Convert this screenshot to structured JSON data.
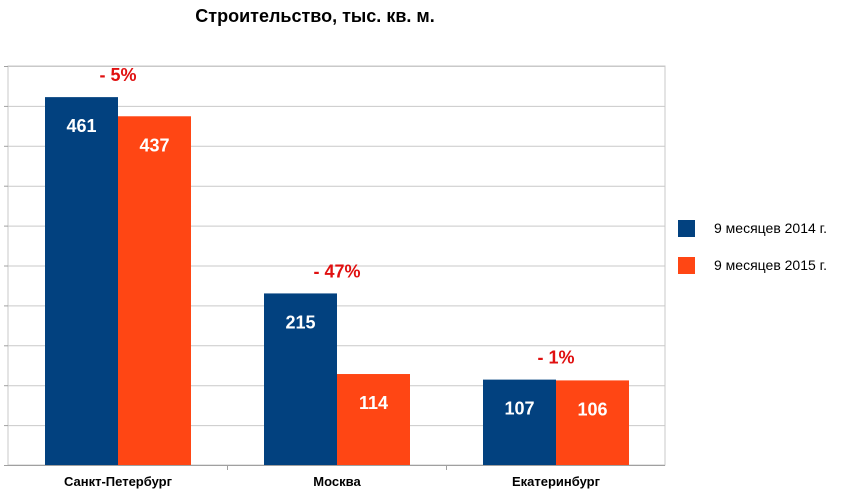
{
  "chart_data": {
    "type": "bar",
    "title": "Строительство, тыс. кв. м.",
    "xlabel": "",
    "ylabel": "",
    "categories": [
      "Санкт-Петербург",
      "Москва",
      "Екатеринбург"
    ],
    "series": [
      {
        "name": "9 месяцев 2014 г.",
        "values": [
          461,
          215,
          107
        ],
        "color": "#02417f"
      },
      {
        "name": "9 месяцев 2015 г.",
        "values": [
          437,
          114,
          106
        ],
        "color": "#ff4614"
      }
    ],
    "annotations": [
      "- 5%",
      "- 47%",
      "- 1%"
    ],
    "annotation_color": "#e01010",
    "ylim": [
      0,
      500
    ],
    "grid": true,
    "legend_position": "right"
  }
}
